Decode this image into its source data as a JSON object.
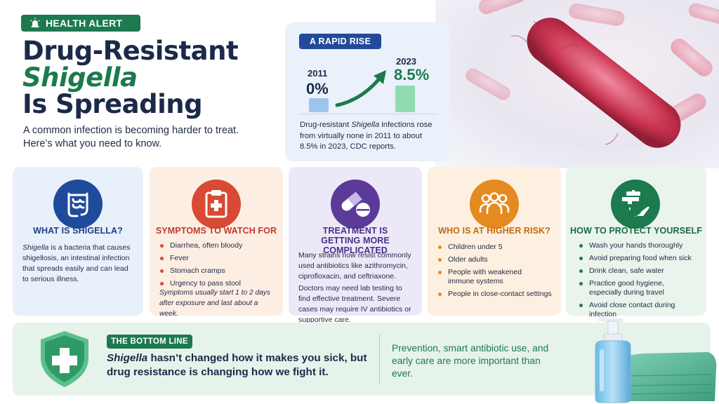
{
  "header": {
    "badge": "HEALTH ALERT",
    "title_line1": "Drug-Resistant",
    "title_line2": "Shigella",
    "title_line3": "Is Spreading",
    "subtitle": "A common infection is becoming harder to treat. Here’s what you need to know."
  },
  "rise": {
    "tag": "A RAPID RISE",
    "start_year": "2011",
    "start_value": "0%",
    "end_year": "2023",
    "end_value": "8.5%",
    "desc_pre": "Drug-resistant ",
    "desc_italic": "Shigella",
    "desc_post": " infections rose from virtually none in 2011 to about 8.5% in 2023, CDC reports."
  },
  "cards": [
    {
      "icon": "intestine-icon",
      "title": "WHAT IS SHIGELLA?",
      "body_italic": "Shigella",
      "body": " is a bacteria that causes shigellosis, an intestinal infection that spreads easily and can lead to serious illness."
    },
    {
      "icon": "clipboard-icon",
      "title": "SYMPTOMS TO WATCH FOR",
      "items": [
        "Diarrhea, often bloody",
        "Fever",
        "Stomach cramps",
        "Urgency to pass stool"
      ],
      "note": "Symptoms usually start 1 to 2 days after exposure and last about a week."
    },
    {
      "icon": "pills-icon",
      "title": "TREATMENT IS GETTING MORE COMPLICATED",
      "para1": "Many strains now resist commonly used antibiotics like azithromycin, ciprofloxacin, and ceftriaxone.",
      "para2": "Doctors may need lab testing to find effective treatment. Severe cases may require IV antibiotics or supportive care."
    },
    {
      "icon": "people-group-icon",
      "title": "WHO IS AT HIGHER RISK?",
      "items": [
        "Children under 5",
        "Older adults",
        "People with weakened immune systems",
        "People in close-contact settings"
      ]
    },
    {
      "icon": "handwash-icon",
      "title": "HOW TO PROTECT YOURSELF",
      "items": [
        "Wash your hands thoroughly",
        "Avoid preparing food when sick",
        "Drink clean, safe water",
        "Practice good hygiene, especially during travel",
        "Avoid close contact during infection"
      ]
    }
  ],
  "bottom": {
    "tag": "THE BOTTOM LINE",
    "text_italic": "Shigella",
    "text": " hasn’t changed how it makes you sick, but drug resistance is changing how we fight it.",
    "right": "Prevention, smart antibiotic use, and early care are more important than ever."
  },
  "colors": {
    "green": "#1c7a4e",
    "navy": "#1b2a4a",
    "blue": "#224a9a",
    "red": "#d94a34",
    "purple": "#5b3a9a",
    "orange": "#e58a1f"
  }
}
